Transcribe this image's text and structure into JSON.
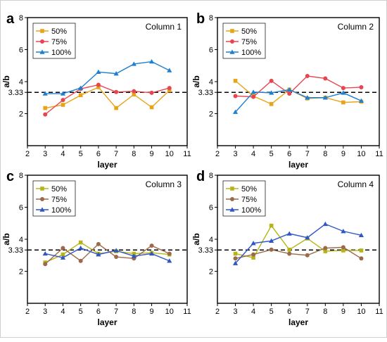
{
  "chart_data": [
    {
      "type": "line",
      "panel_label": "a",
      "title": "Column 1",
      "xlabel": "layer",
      "ylabel": "a/b",
      "xlim": [
        2,
        11
      ],
      "ylim": [
        0,
        8
      ],
      "xticks": [
        2,
        3,
        4,
        5,
        6,
        7,
        8,
        9,
        10,
        11
      ],
      "yticks": [
        2,
        3.33,
        4,
        6,
        8
      ],
      "ytick_labels": [
        "2",
        "3.33",
        "4",
        "6",
        "8"
      ],
      "reference_line": {
        "y": 3.33,
        "style": "dashed"
      },
      "legend_position": "top-left",
      "x": [
        3,
        4,
        5,
        6,
        7,
        8,
        9,
        10
      ],
      "series": [
        {
          "name": "50%",
          "color": "#e8a317",
          "marker": "square",
          "values": [
            2.35,
            2.55,
            3.15,
            3.65,
            2.35,
            3.2,
            2.4,
            3.45
          ]
        },
        {
          "name": "75%",
          "color": "#e8464e",
          "marker": "circle",
          "values": [
            1.95,
            2.85,
            3.55,
            3.8,
            3.35,
            3.4,
            3.3,
            3.6
          ]
        },
        {
          "name": "100%",
          "color": "#1f7fd0",
          "marker": "triangle",
          "values": [
            3.25,
            3.25,
            3.6,
            4.6,
            4.5,
            5.1,
            5.25,
            4.7
          ]
        }
      ]
    },
    {
      "type": "line",
      "panel_label": "b",
      "title": "Column 2",
      "xlabel": "layer",
      "ylabel": "a/b",
      "xlim": [
        2,
        11
      ],
      "ylim": [
        0,
        8
      ],
      "xticks": [
        2,
        3,
        4,
        5,
        6,
        7,
        8,
        9,
        10,
        11
      ],
      "yticks": [
        2,
        3.33,
        4,
        6,
        8
      ],
      "ytick_labels": [
        "2",
        "3.33",
        "4",
        "6",
        "8"
      ],
      "reference_line": {
        "y": 3.33,
        "style": "dashed"
      },
      "legend_position": "top-left",
      "x": [
        3,
        4,
        5,
        6,
        7,
        8,
        9,
        10
      ],
      "series": [
        {
          "name": "50%",
          "color": "#e8a317",
          "marker": "square",
          "values": [
            4.05,
            3.1,
            2.6,
            3.5,
            2.95,
            3.0,
            2.7,
            2.75
          ]
        },
        {
          "name": "75%",
          "color": "#e8464e",
          "marker": "circle",
          "values": [
            3.1,
            3.05,
            4.05,
            3.25,
            4.35,
            4.2,
            3.6,
            3.65
          ]
        },
        {
          "name": "100%",
          "color": "#1f7fd0",
          "marker": "triangle",
          "values": [
            2.1,
            3.35,
            3.3,
            3.5,
            3.0,
            3.0,
            3.3,
            2.8
          ]
        }
      ]
    },
    {
      "type": "line",
      "panel_label": "c",
      "title": "Column 3",
      "xlabel": "layer",
      "ylabel": "a/b",
      "xlim": [
        2,
        11
      ],
      "ylim": [
        0,
        8
      ],
      "xticks": [
        2,
        3,
        4,
        5,
        6,
        7,
        8,
        9,
        10,
        11
      ],
      "yticks": [
        2,
        3.33,
        4,
        6,
        8
      ],
      "ytick_labels": [
        "2",
        "3.33",
        "4",
        "6",
        "8"
      ],
      "reference_line": {
        "y": 3.33,
        "style": "dashed"
      },
      "legend_position": "top-left",
      "x": [
        3,
        4,
        5,
        6,
        7,
        8,
        9,
        10
      ],
      "series": [
        {
          "name": "50%",
          "color": "#b5b518",
          "marker": "square",
          "values": [
            2.55,
            3.05,
            3.8,
            3.1,
            3.25,
            3.1,
            3.15,
            3.05
          ]
        },
        {
          "name": "75%",
          "color": "#9c6a4a",
          "marker": "circle",
          "values": [
            2.45,
            3.45,
            2.65,
            3.7,
            2.9,
            2.8,
            3.6,
            3.1
          ]
        },
        {
          "name": "100%",
          "color": "#2f56c8",
          "marker": "triangle",
          "values": [
            3.1,
            2.85,
            3.45,
            3.05,
            3.3,
            2.95,
            3.1,
            2.65
          ]
        }
      ]
    },
    {
      "type": "line",
      "panel_label": "d",
      "title": "Column 4",
      "xlabel": "layer",
      "ylabel": "a/b",
      "xlim": [
        2,
        11
      ],
      "ylim": [
        0,
        8
      ],
      "xticks": [
        2,
        3,
        4,
        5,
        6,
        7,
        8,
        9,
        10,
        11
      ],
      "yticks": [
        2,
        3.33,
        4,
        6,
        8
      ],
      "ytick_labels": [
        "2",
        "3.33",
        "4",
        "6",
        "8"
      ],
      "reference_line": {
        "y": 3.33,
        "style": "dashed"
      },
      "legend_position": "top-left",
      "x": [
        3,
        4,
        5,
        6,
        7,
        8,
        9,
        10
      ],
      "series": [
        {
          "name": "50%",
          "color": "#b5b518",
          "marker": "square",
          "values": [
            3.1,
            2.85,
            4.85,
            3.35,
            4.05,
            3.25,
            3.3,
            3.3
          ]
        },
        {
          "name": "75%",
          "color": "#9c6a4a",
          "marker": "circle",
          "values": [
            2.8,
            3.05,
            3.35,
            3.1,
            3.0,
            3.45,
            3.5,
            2.8
          ]
        },
        {
          "name": "100%",
          "color": "#2f56c8",
          "marker": "triangle",
          "values": [
            2.5,
            3.75,
            3.9,
            4.35,
            4.1,
            4.95,
            4.5,
            4.25
          ]
        }
      ]
    }
  ]
}
